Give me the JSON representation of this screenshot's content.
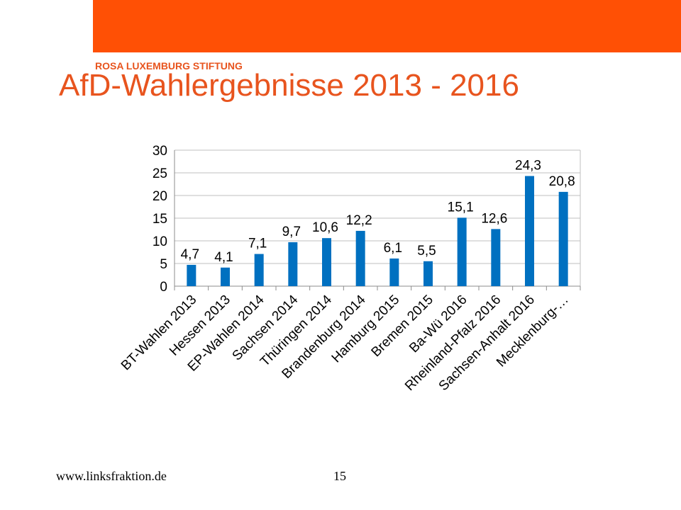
{
  "slide": {
    "brand": "ROSA LUXEMBURG STIFTUNG",
    "title": "AfD-Wahlergebnisse 2013 - 2016",
    "footer_url": "www.linksfraktion.de",
    "page_number": "15"
  },
  "colors": {
    "header_band": "#FF5005",
    "title": "#E8541E",
    "bar": "#0070C0",
    "grid": "#BFBFBF"
  },
  "chart_data": {
    "type": "bar",
    "title": "",
    "xlabel": "",
    "ylabel": "",
    "ylim": [
      0,
      30
    ],
    "yticks": [
      "0",
      "5",
      "10",
      "15",
      "20",
      "25",
      "30"
    ],
    "grid": true,
    "legend": "none",
    "categories": [
      "BT-Wahlen 2013",
      "Hessen 2013",
      "EP-Wahlen 2014",
      "Sachsen 2014",
      "Thüringen 2014",
      "Brandenburg 2014",
      "Hamburg 2015",
      "Bremen 2015",
      "Ba-Wü 2016",
      "Rheinland-Pfalz 2016",
      "Sachsen-Anhalt 2016",
      "Mecklenburg-…"
    ],
    "values": [
      4.7,
      4.1,
      7.1,
      9.7,
      10.6,
      12.2,
      6.1,
      5.5,
      15.1,
      12.6,
      24.3,
      20.8
    ],
    "data_labels": [
      "4,7",
      "4,1",
      "7,1",
      "9,7",
      "10,6",
      "12,2",
      "6,1",
      "5,5",
      "15,1",
      "12,6",
      "24,3",
      "20,8"
    ]
  }
}
